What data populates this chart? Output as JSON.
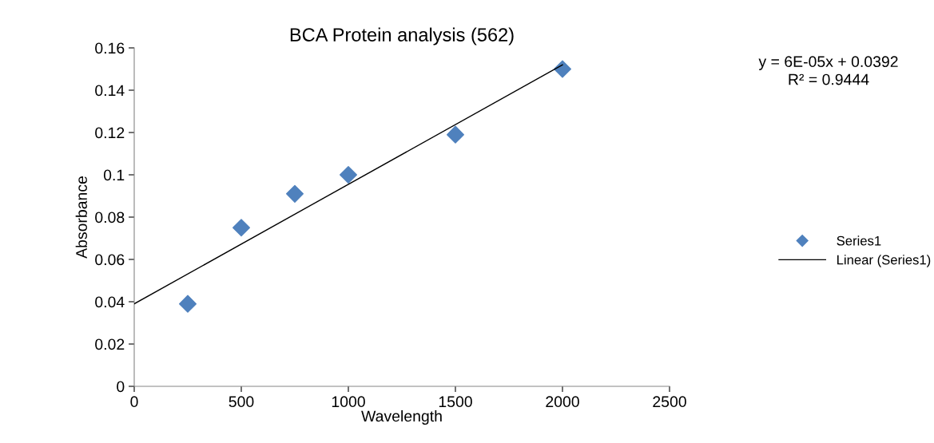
{
  "chart_data": {
    "type": "scatter",
    "title": "BCA Protein analysis (562)",
    "xlabel": "Wavelength",
    "ylabel": "Absorbance",
    "series": [
      {
        "name": "Series1",
        "color": "#4f81bd",
        "marker": "diamond",
        "x": [
          250,
          500,
          750,
          1000,
          1500,
          2000
        ],
        "values": [
          0.039,
          0.075,
          0.091,
          0.1,
          0.119,
          0.15
        ]
      },
      {
        "name": "Linear (Series1)",
        "type": "line",
        "color": "#000000",
        "marker": "none",
        "line_style": "solid",
        "x": [
          0,
          2000
        ],
        "values": [
          0.039,
          0.152
        ]
      }
    ],
    "xlim": [
      0,
      2500
    ],
    "xticks": [
      0,
      500,
      1000,
      1500,
      2000,
      2500
    ],
    "ylim": [
      0,
      0.16
    ],
    "yticks": [
      0,
      0.02,
      0.04,
      0.06,
      0.08,
      0.1,
      0.12,
      0.14,
      0.16
    ],
    "annotations": [
      "y = 6E-05x + 0.0392\nR² = 0.9444"
    ],
    "grid": false,
    "legend": "right"
  }
}
